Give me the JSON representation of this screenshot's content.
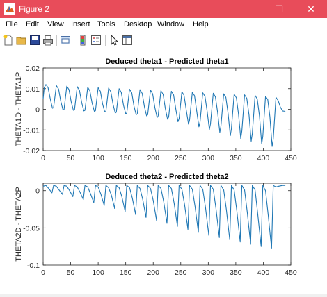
{
  "window": {
    "title": "Figure 2",
    "buttons": {
      "minimize": "—",
      "maximize": "☐",
      "close": "✕"
    }
  },
  "menu": {
    "items": [
      "File",
      "Edit",
      "View",
      "Insert",
      "Tools",
      "Desktop",
      "Window",
      "Help"
    ]
  },
  "toolbar": {
    "icons": [
      "new-figure-icon",
      "open-file-icon",
      "save-icon",
      "print-icon",
      "link-plot-icon",
      "insert-colorbar-icon",
      "insert-legend-icon",
      "edit-plot-icon",
      "property-inspector-icon"
    ]
  },
  "colors": {
    "titlebar": "#e84c5a",
    "line": "#1f77b4"
  },
  "chart_data": [
    {
      "type": "line",
      "title": "Deduced theta1 - Predicted theta1",
      "xlabel": "",
      "ylabel": "THETA1D - THETA1P",
      "xlim": [
        0,
        450
      ],
      "ylim": [
        -0.02,
        0.02
      ],
      "xticks": [
        "0",
        "50",
        "100",
        "150",
        "200",
        "250",
        "300",
        "350",
        "400",
        "450"
      ],
      "yticks": [
        "-0.02",
        "-0.01",
        "0",
        "0.01",
        "0.02"
      ],
      "series": [
        {
          "x": [
            0,
            2,
            5,
            9,
            13,
            17,
            19,
            24,
            28,
            32,
            36,
            38,
            43,
            47,
            51,
            55,
            57,
            62,
            66,
            70,
            74,
            76,
            81,
            85,
            89,
            93,
            95,
            100,
            104,
            108,
            112,
            114,
            119,
            123,
            127,
            131,
            133,
            138,
            142,
            146,
            150,
            152,
            157,
            161,
            165,
            169,
            171,
            176,
            180,
            184,
            188,
            190,
            195,
            199,
            203,
            207,
            209,
            214,
            218,
            222,
            226,
            228,
            233,
            237,
            241,
            245,
            247,
            252,
            256,
            260,
            264,
            266,
            271,
            275,
            279,
            283,
            285,
            290,
            294,
            298,
            302,
            304,
            309,
            313,
            317,
            321,
            323,
            328,
            332,
            336,
            340,
            342,
            347,
            351,
            355,
            359,
            361,
            366,
            370,
            374,
            378,
            380,
            385,
            389,
            393,
            397,
            399,
            404,
            408,
            412,
            416,
            418,
            423,
            427,
            431,
            435,
            440
          ],
          "y": [
            0.005,
            0.0105,
            0.012,
            0.0105,
            0.005,
            0.0005,
            0.0008,
            0.0115,
            0.0098,
            0.004,
            -0.0003,
            0.0,
            0.0112,
            0.0095,
            0.0037,
            -0.0005,
            -0.0003,
            0.011,
            0.0092,
            0.0033,
            -0.0008,
            -0.0005,
            0.0107,
            0.0089,
            0.003,
            -0.001,
            -0.0007,
            0.0105,
            0.0087,
            0.0027,
            -0.0013,
            -0.001,
            0.0103,
            0.0085,
            0.0024,
            -0.0018,
            -0.0014,
            0.01,
            0.0082,
            0.002,
            -0.0022,
            -0.0018,
            0.0097,
            0.008,
            0.0016,
            -0.0027,
            -0.0022,
            0.0095,
            0.0077,
            0.0012,
            -0.0032,
            -0.0026,
            0.0093,
            0.0075,
            0.0008,
            -0.004,
            -0.0032,
            0.009,
            0.0072,
            0.0004,
            -0.0048,
            -0.0038,
            0.0087,
            0.007,
            0.0,
            -0.006,
            -0.0046,
            0.0085,
            0.0068,
            -0.0004,
            -0.0072,
            -0.0054,
            0.0082,
            0.0066,
            -0.0008,
            -0.0085,
            -0.0062,
            0.008,
            0.0063,
            -0.0012,
            -0.0098,
            -0.0071,
            0.0078,
            0.006,
            -0.0016,
            -0.0112,
            -0.0082,
            0.0075,
            0.0058,
            -0.002,
            -0.0128,
            -0.0093,
            0.0073,
            0.0056,
            -0.0024,
            -0.0142,
            -0.0105,
            0.007,
            0.0053,
            -0.0028,
            -0.0155,
            -0.0118,
            0.0067,
            0.005,
            -0.0032,
            -0.0168,
            -0.0132,
            0.0063,
            0.0047,
            -0.0036,
            -0.018,
            -0.0145,
            0.0058,
            0.0042,
            0.001,
            -0.0008,
            -0.001
          ]
        }
      ]
    },
    {
      "type": "line",
      "title": "Deduced theta2 - Predicted theta2",
      "xlabel": "",
      "ylabel": "THETA2D - THETA2P",
      "xlim": [
        0,
        450
      ],
      "ylim": [
        -0.1,
        0.01
      ],
      "xticks": [
        "0",
        "50",
        "100",
        "150",
        "200",
        "250",
        "300",
        "350",
        "400",
        "450"
      ],
      "yticks": [
        "-0.1",
        "-0.05",
        "0"
      ],
      "series": [
        {
          "x": [
            0,
            5,
            10,
            16,
            19,
            24,
            29,
            35,
            38,
            43,
            48,
            54,
            57,
            62,
            67,
            73,
            76,
            81,
            86,
            92,
            95,
            100,
            105,
            111,
            114,
            119,
            124,
            130,
            133,
            138,
            143,
            149,
            152,
            157,
            162,
            168,
            171,
            176,
            181,
            187,
            190,
            195,
            200,
            206,
            209,
            214,
            219,
            225,
            228,
            233,
            238,
            244,
            247,
            252,
            257,
            263,
            266,
            271,
            276,
            282,
            285,
            290,
            295,
            301,
            304,
            309,
            314,
            320,
            323,
            328,
            333,
            339,
            342,
            347,
            352,
            358,
            361,
            366,
            371,
            377,
            380,
            385,
            390,
            396,
            399,
            404,
            409,
            415,
            418,
            423,
            428,
            435,
            440
          ],
          "y": [
            0.006,
            0.007,
            0.003,
            -0.003,
            0.007,
            0.006,
            0.001,
            -0.005,
            0.007,
            0.006,
            0.0,
            -0.008,
            0.007,
            0.005,
            -0.002,
            -0.012,
            0.007,
            0.005,
            -0.004,
            -0.016,
            0.007,
            0.005,
            -0.005,
            -0.02,
            0.007,
            0.004,
            -0.006,
            -0.024,
            0.007,
            0.004,
            -0.008,
            -0.028,
            0.007,
            0.004,
            -0.01,
            -0.032,
            0.007,
            0.003,
            -0.012,
            -0.036,
            0.007,
            0.003,
            -0.013,
            -0.04,
            0.007,
            0.003,
            -0.015,
            -0.044,
            0.007,
            0.003,
            -0.017,
            -0.048,
            0.007,
            0.002,
            -0.019,
            -0.052,
            0.007,
            0.002,
            -0.021,
            -0.056,
            0.007,
            0.002,
            -0.023,
            -0.06,
            0.007,
            0.002,
            -0.024,
            -0.063,
            0.007,
            0.001,
            -0.026,
            -0.066,
            0.007,
            0.001,
            -0.028,
            -0.069,
            0.007,
            0.001,
            -0.03,
            -0.072,
            0.007,
            0.001,
            -0.032,
            -0.075,
            0.007,
            0.0,
            -0.034,
            -0.078,
            0.007,
            0.005,
            0.006,
            0.007,
            0.007
          ]
        }
      ]
    }
  ]
}
